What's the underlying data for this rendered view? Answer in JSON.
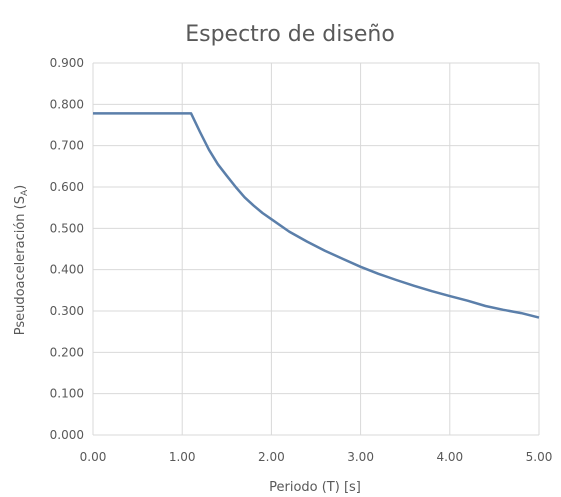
{
  "chart_data": {
    "type": "line",
    "title": "Espectro de diseño",
    "xlabel": "Periodo (T) [s]",
    "ylabel_main": "Pseudoaceleración (S",
    "ylabel_sub": "A",
    "ylabel_end": ")",
    "xlim": [
      0,
      5
    ],
    "ylim": [
      0,
      0.9
    ],
    "grid": true,
    "x_ticks": [
      "0.00",
      "1.00",
      "2.00",
      "3.00",
      "4.00",
      "5.00"
    ],
    "y_ticks": [
      "0.000",
      "0.100",
      "0.200",
      "0.300",
      "0.400",
      "0.500",
      "0.600",
      "0.700",
      "0.800",
      "0.900"
    ],
    "line_color": "#5b7faa",
    "series": [
      {
        "x": [
          0.0,
          1.1,
          1.2,
          1.3,
          1.4,
          1.5,
          1.6,
          1.7,
          1.8,
          1.9,
          2.0,
          2.2,
          2.4,
          2.6,
          2.8,
          3.0,
          3.2,
          3.4,
          3.6,
          3.8,
          4.0,
          4.2,
          4.4,
          4.6,
          4.8,
          5.0
        ],
        "y": [
          0.778,
          0.778,
          0.733,
          0.69,
          0.655,
          0.627,
          0.6,
          0.575,
          0.555,
          0.537,
          0.522,
          0.492,
          0.468,
          0.446,
          0.426,
          0.407,
          0.39,
          0.375,
          0.361,
          0.348,
          0.336,
          0.325,
          0.312,
          0.303,
          0.295,
          0.284
        ]
      }
    ]
  }
}
